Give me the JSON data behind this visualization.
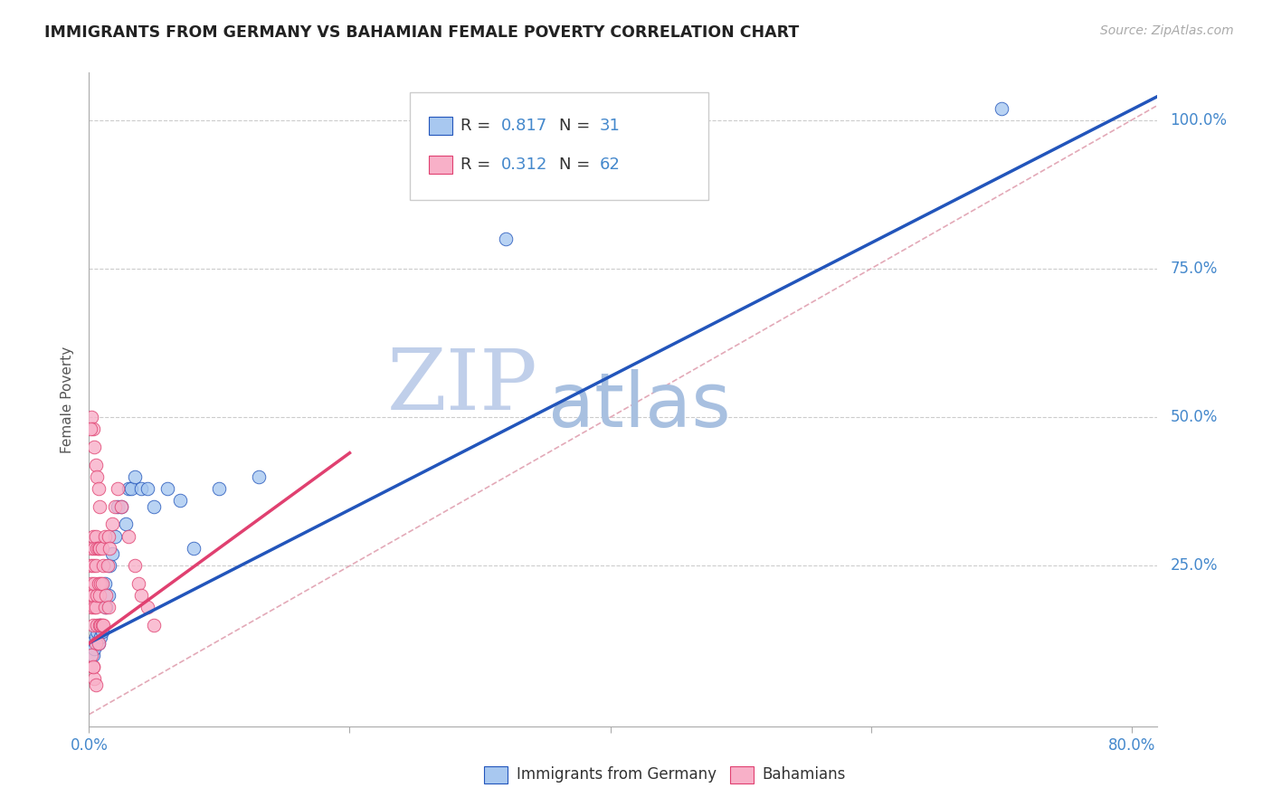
{
  "title": "IMMIGRANTS FROM GERMANY VS BAHAMIAN FEMALE POVERTY CORRELATION CHART",
  "source": "Source: ZipAtlas.com",
  "ylabel": "Female Poverty",
  "xlabel_ticks": [
    "0.0%",
    "",
    "",
    "",
    "80.0%"
  ],
  "xlabel_vals": [
    0.0,
    0.2,
    0.4,
    0.6,
    0.8
  ],
  "ytick_labels": [
    "100.0%",
    "75.0%",
    "50.0%",
    "25.0%"
  ],
  "ytick_vals": [
    1.0,
    0.75,
    0.5,
    0.25
  ],
  "legend_r1": "0.817",
  "legend_n1": "31",
  "legend_r2": "0.312",
  "legend_n2": "62",
  "color_blue": "#A8C8F0",
  "color_pink": "#F8B0C8",
  "color_blue_line": "#2255BB",
  "color_pink_line": "#E04070",
  "color_diag": "#E0A0B0",
  "watermark_zip": "ZIP",
  "watermark_atlas": "atlas",
  "watermark_color_zip": "#C0CFEA",
  "watermark_color_atlas": "#A8C0E0",
  "blue_scatter_x": [
    0.002,
    0.003,
    0.004,
    0.005,
    0.006,
    0.007,
    0.008,
    0.009,
    0.01,
    0.012,
    0.013,
    0.015,
    0.016,
    0.018,
    0.02,
    0.022,
    0.025,
    0.028,
    0.03,
    0.032,
    0.035,
    0.04,
    0.045,
    0.05,
    0.06,
    0.07,
    0.08,
    0.1,
    0.13,
    0.32,
    0.7
  ],
  "blue_scatter_y": [
    0.12,
    0.1,
    0.11,
    0.13,
    0.14,
    0.12,
    0.15,
    0.13,
    0.14,
    0.22,
    0.18,
    0.2,
    0.25,
    0.27,
    0.3,
    0.35,
    0.35,
    0.32,
    0.38,
    0.38,
    0.4,
    0.38,
    0.38,
    0.35,
    0.38,
    0.36,
    0.28,
    0.38,
    0.4,
    0.8,
    1.02
  ],
  "pink_scatter_x": [
    0.001,
    0.001,
    0.002,
    0.002,
    0.002,
    0.003,
    0.003,
    0.003,
    0.003,
    0.004,
    0.004,
    0.004,
    0.005,
    0.005,
    0.005,
    0.005,
    0.006,
    0.006,
    0.006,
    0.007,
    0.007,
    0.007,
    0.008,
    0.008,
    0.008,
    0.009,
    0.009,
    0.01,
    0.01,
    0.01,
    0.011,
    0.011,
    0.012,
    0.012,
    0.013,
    0.014,
    0.015,
    0.015,
    0.016,
    0.018,
    0.02,
    0.022,
    0.025,
    0.03,
    0.035,
    0.038,
    0.04,
    0.045,
    0.05,
    0.002,
    0.003,
    0.004,
    0.005,
    0.006,
    0.007,
    0.008,
    0.003,
    0.004,
    0.005,
    0.002,
    0.003,
    0.001
  ],
  "pink_scatter_y": [
    0.2,
    0.25,
    0.18,
    0.22,
    0.28,
    0.15,
    0.2,
    0.25,
    0.3,
    0.18,
    0.22,
    0.28,
    0.12,
    0.18,
    0.25,
    0.3,
    0.15,
    0.2,
    0.28,
    0.12,
    0.22,
    0.28,
    0.15,
    0.2,
    0.28,
    0.15,
    0.22,
    0.15,
    0.22,
    0.28,
    0.15,
    0.25,
    0.18,
    0.3,
    0.2,
    0.25,
    0.18,
    0.3,
    0.28,
    0.32,
    0.35,
    0.38,
    0.35,
    0.3,
    0.25,
    0.22,
    0.2,
    0.18,
    0.15,
    0.5,
    0.48,
    0.45,
    0.42,
    0.4,
    0.38,
    0.35,
    0.08,
    0.06,
    0.05,
    0.1,
    0.08,
    0.48
  ],
  "xlim": [
    0.0,
    0.82
  ],
  "ylim": [
    -0.02,
    1.08
  ],
  "blue_line_x": [
    0.0,
    0.82
  ],
  "blue_line_y": [
    0.12,
    1.04
  ],
  "pink_line_x": [
    0.0,
    0.2
  ],
  "pink_line_y": [
    0.12,
    0.44
  ]
}
